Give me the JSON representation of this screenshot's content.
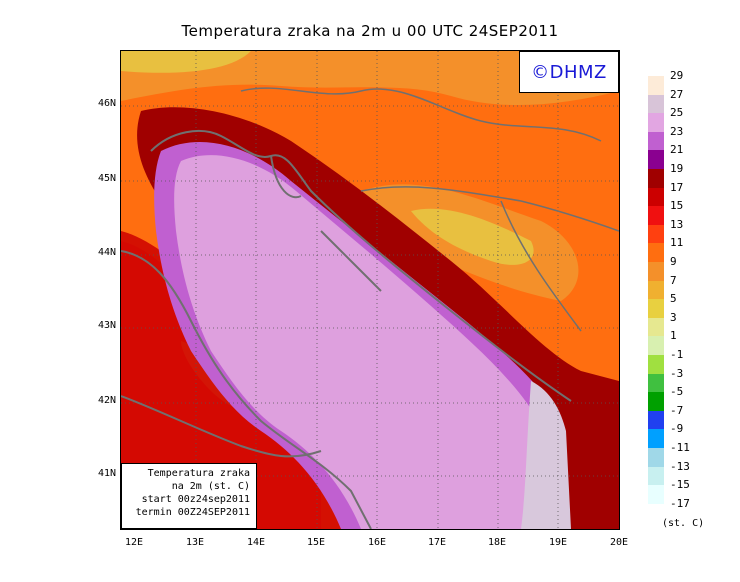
{
  "title": "Temperatura zraka na 2m u 00 UTC 24SEP2011",
  "logo_text": "©DHMZ",
  "infobox": {
    "line1": "Temperatura zraka",
    "line2": "na 2m (st. C)",
    "line3": "start 00z24sep2011",
    "line4": "termin 00Z24SEP2011"
  },
  "lat_labels": [
    "46N",
    "45N",
    "44N",
    "43N",
    "42N",
    "41N"
  ],
  "lon_labels": [
    "12E",
    "13E",
    "14E",
    "15E",
    "16E",
    "17E",
    "18E",
    "19E",
    "20E"
  ],
  "colorbar": {
    "labels": [
      "29",
      "27",
      "25",
      "23",
      "21",
      "19",
      "17",
      "15",
      "13",
      "11",
      "9",
      "7",
      "5",
      "3",
      "1",
      "-1",
      "-3",
      "-5",
      "-7",
      "-9",
      "-11",
      "-13",
      "-15",
      "-17"
    ],
    "colors": [
      "#fdebd8",
      "#d8c4d8",
      "#e2a6e2",
      "#c060d0",
      "#8a0090",
      "#a00000",
      "#cc0000",
      "#f01010",
      "#ff4010",
      "#ff6e10",
      "#f4902a",
      "#f0b030",
      "#e8d040",
      "#e6e890",
      "#d8f0b0",
      "#a0e040",
      "#40c040",
      "#00a000",
      "#2040f0",
      "#00a0ff",
      "#a0d8e8",
      "#c8f0f0",
      "#e8ffff",
      "#ffffff"
    ],
    "unit": "(st. C)"
  },
  "colors": {
    "sea": "#dea0de",
    "sea_south": "#d8c8dc",
    "coastal_sea": "#c060d0",
    "warm_coast": "#a00000",
    "land_hot": "#ff6e10",
    "land_mild": "#f4902a",
    "land_cool": "#e8c040"
  }
}
